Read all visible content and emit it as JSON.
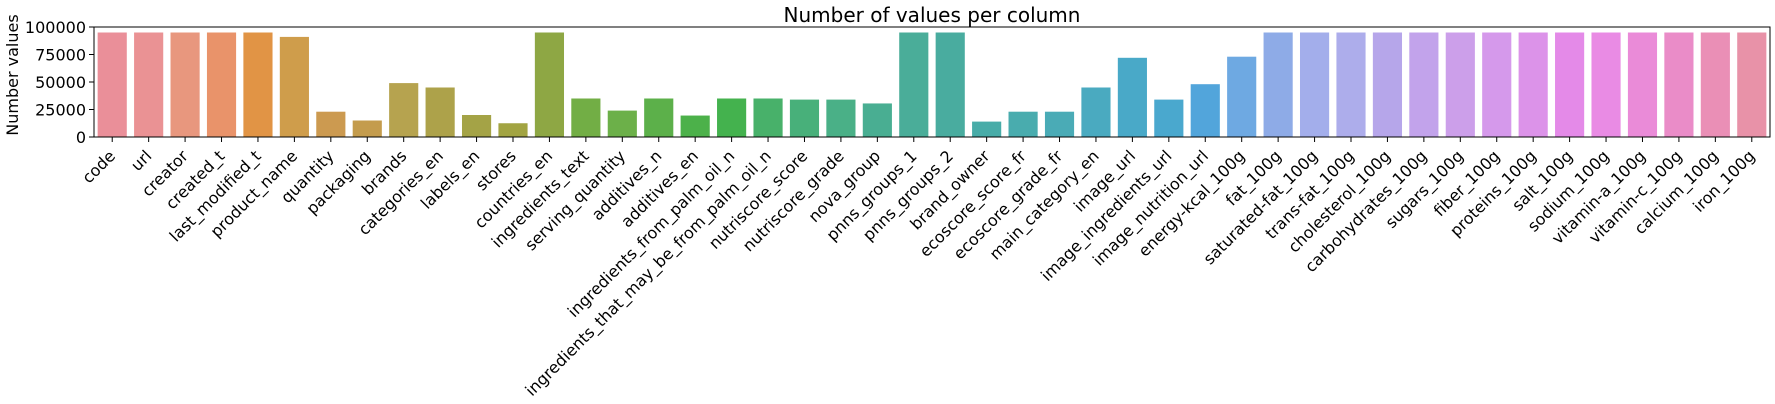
{
  "chart_data": {
    "type": "bar",
    "title": "Number of values per column",
    "xlabel": "",
    "ylabel": "Number values",
    "ylim": [
      0,
      100000
    ],
    "yticks": [
      "0",
      "25000",
      "50000",
      "75000",
      "100000"
    ],
    "grid": false,
    "categories": [
      "code",
      "url",
      "creator",
      "created_t",
      "last_modified_t",
      "product_name",
      "quantity",
      "packaging",
      "brands",
      "categories_en",
      "labels_en",
      "stores",
      "countries_en",
      "ingredients_text",
      "serving_quantity",
      "additives_n",
      "additives_en",
      "ingredients_from_palm_oil_n",
      "ingredients_that_may_be_from_palm_oil_n",
      "nutriscore_score",
      "nutriscore_grade",
      "nova_group",
      "pnns_groups_1",
      "pnns_groups_2",
      "brand_owner",
      "ecoscore_score_fr",
      "ecoscore_grade_fr",
      "main_category_en",
      "image_url",
      "image_ingredients_url",
      "image_nutrition_url",
      "energy-kcal_100g",
      "fat_100g",
      "saturated-fat_100g",
      "trans-fat_100g",
      "cholesterol_100g",
      "carbohydrates_100g",
      "sugars_100g",
      "fiber_100g",
      "proteins_100g",
      "salt_100g",
      "sodium_100g",
      "vitamin-a_100g",
      "vitamin-c_100g",
      "calcium_100g",
      "iron_100g"
    ],
    "values": [
      95000,
      95000,
      95000,
      95000,
      95000,
      91000,
      23000,
      15000,
      49000,
      45000,
      20000,
      12500,
      95000,
      35000,
      24000,
      35000,
      19500,
      35000,
      35000,
      34000,
      34000,
      30500,
      95000,
      95000,
      14000,
      23000,
      23000,
      45000,
      72000,
      34000,
      48000,
      73000,
      95000,
      95000,
      95000,
      95000,
      95000,
      95000,
      95000,
      95000,
      95000,
      95000,
      95000,
      95000,
      95000,
      95000
    ],
    "colors": [
      "#ea8f99",
      "#ea9294",
      "#e8977e",
      "#e9936a",
      "#e19445",
      "#cf9d4b",
      "#cc9a50",
      "#c49c4d",
      "#b6a34f",
      "#ada24a",
      "#a4a346",
      "#a2a442",
      "#8ea744",
      "#72ae45",
      "#6cb049",
      "#5cb04a",
      "#4cb14a",
      "#44b24e",
      "#48b16a",
      "#48b07a",
      "#4ab087",
      "#49ae92",
      "#4aad99",
      "#49ac9f",
      "#48aca8",
      "#49acae",
      "#4aabb6",
      "#4aaac0",
      "#49a9c8",
      "#4aa8ce",
      "#52a5db",
      "#6ea9e2",
      "#8eabe7",
      "#a3aeeb",
      "#adadeb",
      "#b6a6ea",
      "#c2a3eb",
      "#cc9fea",
      "#d599eb",
      "#dc93e9",
      "#e48ae8",
      "#e98be4",
      "#ea8bd8",
      "#ea8cc8",
      "#ea8fb6",
      "#e892a8"
    ]
  }
}
